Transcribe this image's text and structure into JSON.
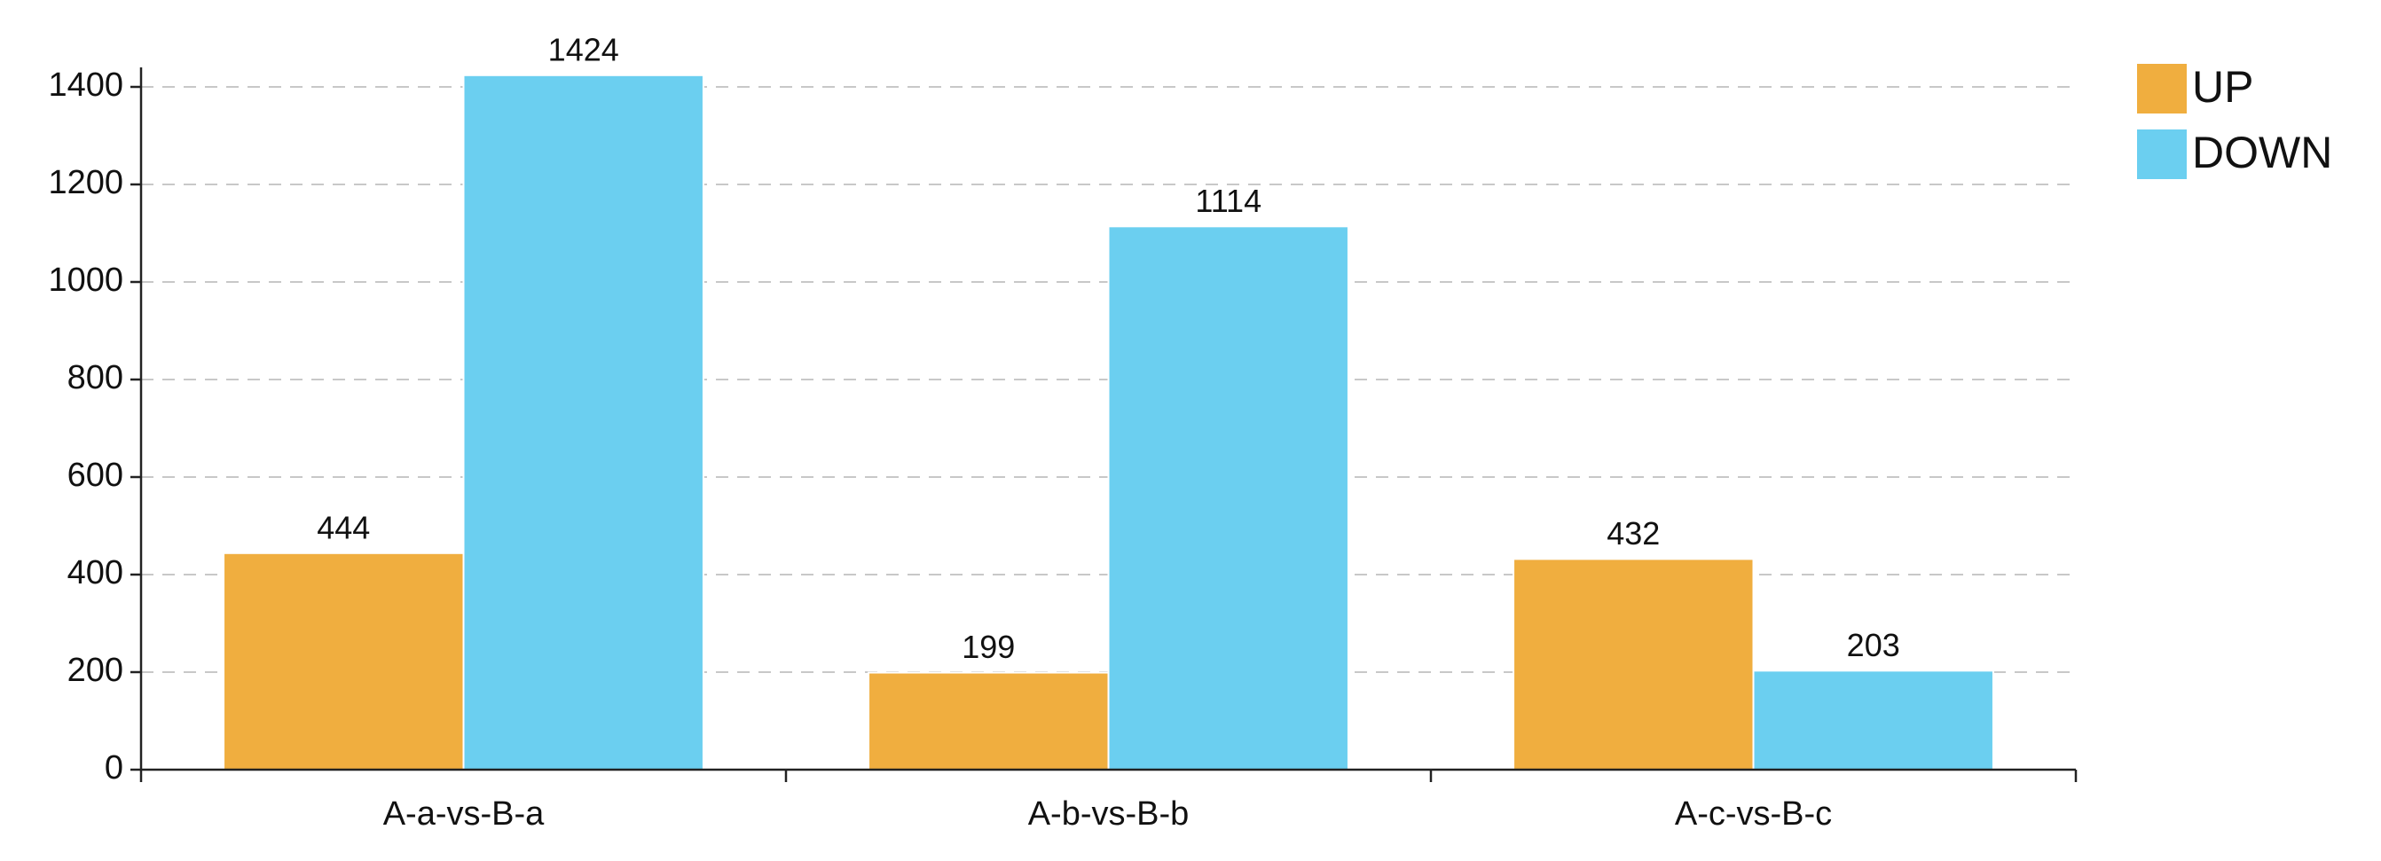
{
  "chart_data": {
    "type": "bar",
    "categories": [
      "A-a-vs-B-a",
      "A-b-vs-B-b",
      "A-c-vs-B-c"
    ],
    "series": [
      {
        "name": "UP",
        "color": "#f0ae3f",
        "values": [
          444,
          199,
          432
        ]
      },
      {
        "name": "DOWN",
        "color": "#6bcff0",
        "values": [
          1424,
          1114,
          203
        ]
      }
    ],
    "ylim": [
      0,
      1400
    ],
    "yticks": [
      0,
      200,
      400,
      600,
      800,
      1000,
      1200,
      1400
    ],
    "grid": true,
    "legend": "top-right"
  }
}
